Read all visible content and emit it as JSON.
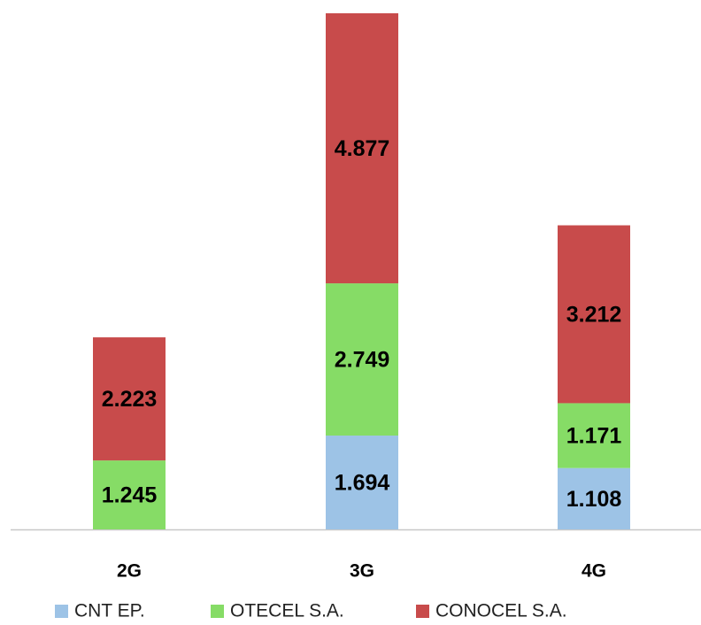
{
  "chart_data": {
    "type": "stacked_bar",
    "categories": [
      "2G",
      "3G",
      "4G"
    ],
    "series": [
      {
        "name": "CNT EP.",
        "color": "#9dc3e6",
        "values": [
          null,
          1.694,
          1.108
        ]
      },
      {
        "name": "OTECEL S.A.",
        "color": "#86dc66",
        "values": [
          1.245,
          2.749,
          1.171
        ]
      },
      {
        "name": "CONOCEL S.A.",
        "color": "#c84b4b",
        "values": [
          2.223,
          4.877,
          3.212
        ]
      }
    ]
  }
}
